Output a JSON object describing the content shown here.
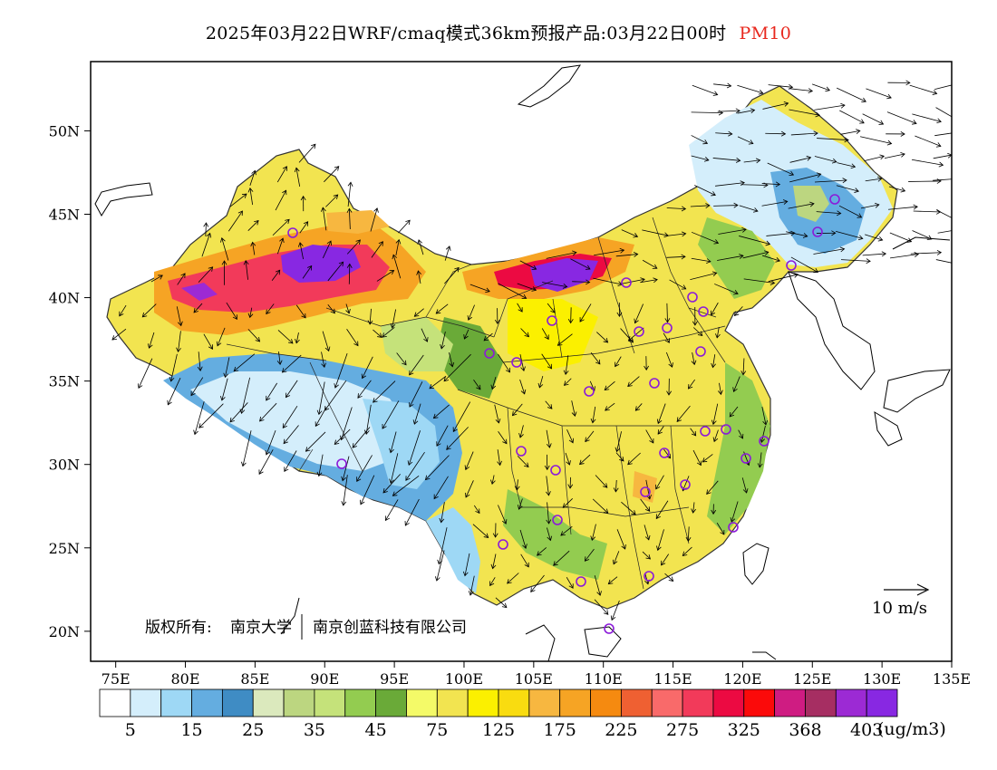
{
  "title": {
    "main": "2025年03月22日WRF/cmaq模式36km预报产品:03月22日00时",
    "variable": "PM10",
    "variable_color": "#e8281e"
  },
  "map": {
    "lat_ticks": [
      {
        "label": "50N",
        "value": 50
      },
      {
        "label": "45N",
        "value": 45
      },
      {
        "label": "40N",
        "value": 40
      },
      {
        "label": "35N",
        "value": 35
      },
      {
        "label": "30N",
        "value": 30
      },
      {
        "label": "25N",
        "value": 25
      },
      {
        "label": "20N",
        "value": 20
      }
    ],
    "lon_ticks": [
      {
        "label": "75E",
        "value": 75
      },
      {
        "label": "80E",
        "value": 80
      },
      {
        "label": "85E",
        "value": 85
      },
      {
        "label": "90E",
        "value": 90
      },
      {
        "label": "95E",
        "value": 95
      },
      {
        "label": "100E",
        "value": 100
      },
      {
        "label": "105E",
        "value": 105
      },
      {
        "label": "110E",
        "value": 110
      },
      {
        "label": "115E",
        "value": 115
      },
      {
        "label": "120E",
        "value": 120
      },
      {
        "label": "125E",
        "value": 125
      },
      {
        "label": "130E",
        "value": 130
      },
      {
        "label": "135E",
        "value": 135
      }
    ],
    "copyright_prefix": "版权所有:",
    "copyright_org1": "南京大学",
    "copyright_org2": "南京创蓝科技有限公司",
    "wind_reference_label": "10 m/s"
  },
  "legend": {
    "colors": [
      "#ffffff",
      "#d4eefb",
      "#9ed8f5",
      "#64ade0",
      "#3f8cc4",
      "#dbe9bd",
      "#bcd680",
      "#c5e27a",
      "#93cc50",
      "#6aaa38",
      "#f4fa68",
      "#f2e450",
      "#fbf000",
      "#f9dc10",
      "#f7b740",
      "#f6a424",
      "#f58a10",
      "#ef6032",
      "#f96a6a",
      "#f23a5a",
      "#ec0a42",
      "#fb0a0a",
      "#cf1c82",
      "#a62e62",
      "#9c2ad4",
      "#8828e2"
    ],
    "labels": [
      "5",
      "15",
      "25",
      "35",
      "45",
      "75",
      "125",
      "175",
      "225",
      "275",
      "325",
      "368",
      "403"
    ],
    "unit": "(ug/m3)"
  }
}
